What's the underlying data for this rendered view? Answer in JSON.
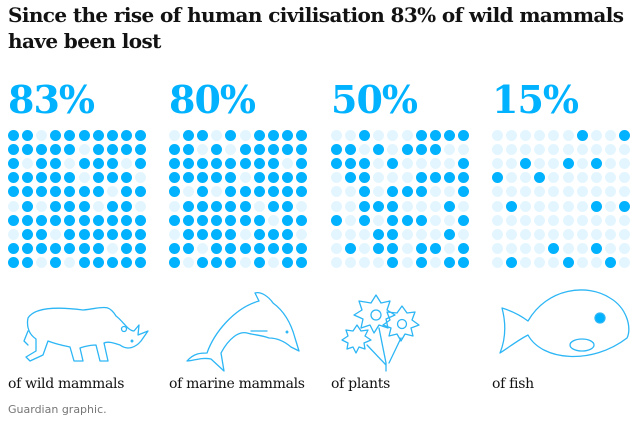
{
  "title": "Since the rise of human civilisation 83% of wild mammals have been lost",
  "footer": "Guardian graphic.",
  "colors": {
    "filled": "#00b2ff",
    "empty": "#e3f6ff",
    "accent_text": "#00b2ff"
  },
  "chart_data": [
    {
      "type": "waffle",
      "value_label": "83%",
      "value": 83,
      "label": "of wild mammals",
      "icon": "rhino-icon",
      "grid": [
        "1101111111",
        "1111101111",
        "1011011101",
        "1111101110",
        "1111111011",
        "0101110110",
        "1111111111",
        "0110111111",
        "1111111011",
        "1101011111"
      ]
    },
    {
      "type": "waffle",
      "value_label": "80%",
      "value": 80,
      "label": "of marine mammals",
      "icon": "dolphin-icon",
      "grid": [
        "0110101111",
        "1101011111",
        "1111111101",
        "1111101111",
        "1010111111",
        "0111110110",
        "1111111011",
        "0111101110",
        "1101111111",
        "1011101011"
      ]
    },
    {
      "type": "waffle",
      "value_label": "50%",
      "value": 50,
      "label": "of plants",
      "icon": "flowers-icon",
      "grid": [
        "0010001111",
        "1101011100",
        "1110100001",
        "0110001111",
        "0010111001",
        "0011100010",
        "1010111001",
        "0001100010",
        "0101101101",
        "0000101011"
      ]
    },
    {
      "type": "waffle",
      "value_label": "15%",
      "value": 15,
      "label": "of fish",
      "icon": "fish-icon",
      "grid": [
        "0000001001",
        "0000000000",
        "0010010100",
        "1001000000",
        "0000000000",
        "0100000101",
        "0000000000",
        "0000000000",
        "0000100100",
        "0100010010"
      ]
    }
  ]
}
